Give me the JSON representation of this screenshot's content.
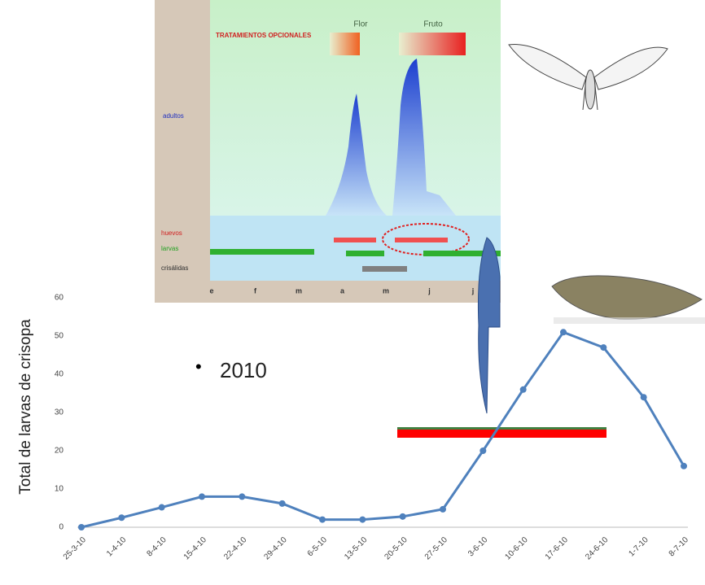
{
  "chart_data": {
    "type": "line",
    "y_label": "Total de larvas de crisopa",
    "annotation": "2010",
    "categories": [
      "25-3-10",
      "1-4-10",
      "8-4-10",
      "15-4-10",
      "22-4-10",
      "29-4-10",
      "6-5-10",
      "13-5-10",
      "20-5-10",
      "27-5-10",
      "3-6-10",
      "10-6-10",
      "17-6-10",
      "24-6-10",
      "1-7-10",
      "8-7-10"
    ],
    "values": [
      0,
      2.5,
      5.2,
      8,
      8,
      6.2,
      2,
      2,
      2.8,
      4.7,
      20,
      36,
      51,
      47,
      34,
      16
    ],
    "color": "#4f81bd",
    "ylim": [
      0,
      60
    ],
    "yticks": [
      0,
      10,
      20,
      30,
      40,
      50,
      60
    ],
    "grid": false
  },
  "inset": {
    "treatments": "TRATAMIENTOS OPCIONALES",
    "flower": "Flor",
    "fruit": "Fruto",
    "adults": "adultos",
    "eggs": "huevos",
    "larvae": "larvas",
    "pupae": "crisálidas",
    "months": [
      "e",
      "f",
      "m",
      "a",
      "m",
      "j",
      "j"
    ]
  }
}
